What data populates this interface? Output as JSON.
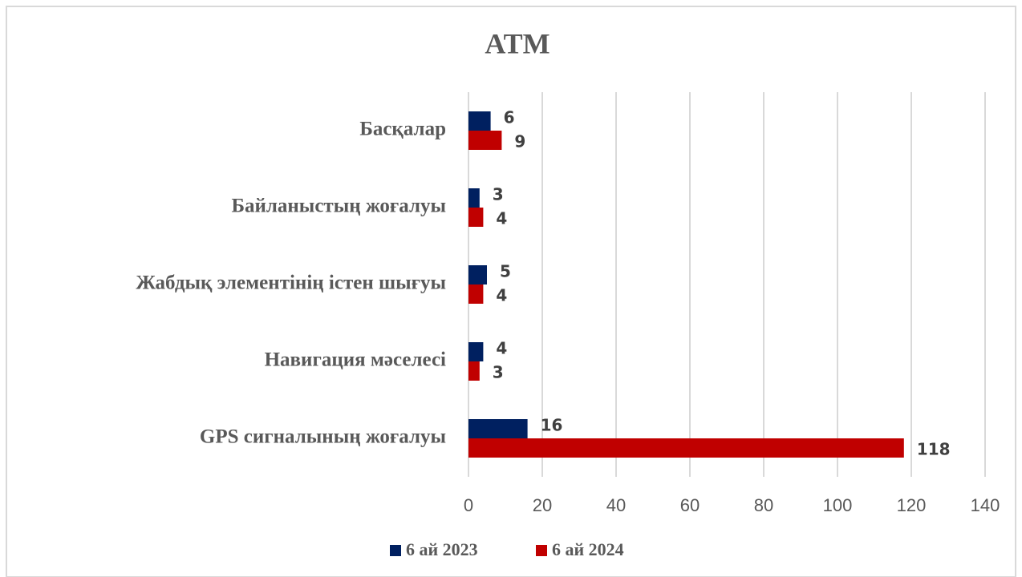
{
  "chart_data": {
    "type": "bar",
    "orientation": "horizontal",
    "title": "ATM",
    "categories": [
      "Басқалар",
      "Байланыстың жоғалуы",
      "Жабдық элементінің істен шығуы",
      "Навигация мәселесі",
      "GPS сигналының жоғалуы"
    ],
    "series": [
      {
        "name": "6 ай 2023",
        "color": "#002060",
        "values": [
          6,
          3,
          5,
          4,
          16
        ]
      },
      {
        "name": "6 ай 2024",
        "color": "#c00000",
        "values": [
          9,
          4,
          4,
          3,
          118
        ]
      }
    ],
    "xlim": [
      0,
      140
    ],
    "xticks": [
      0,
      20,
      40,
      60,
      80,
      100,
      120,
      140
    ],
    "grid": true,
    "legend": "bottom"
  }
}
